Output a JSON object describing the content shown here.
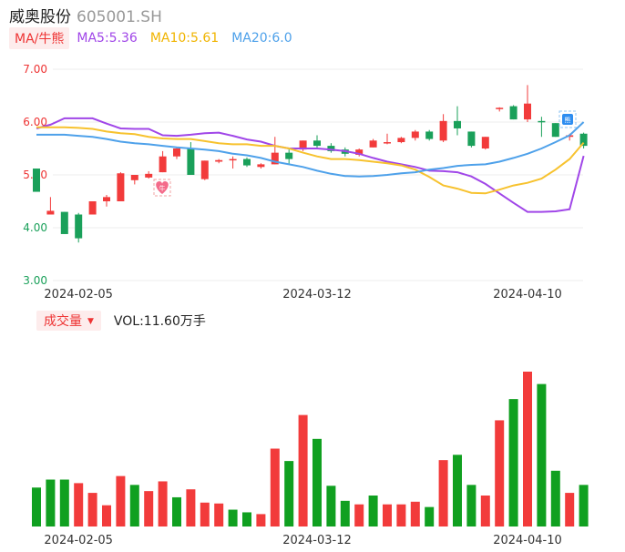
{
  "stock": {
    "name": "威奥股份",
    "code": "605001.SH"
  },
  "ma_legend": {
    "button": "MA/牛熊",
    "ma5": "MA5:5.36",
    "ma10": "MA10:5.61",
    "ma20": "MA20:6.0"
  },
  "volume_legend": {
    "button": "成交量",
    "vol": "VOL:11.60万手"
  },
  "colors": {
    "up": "#f23b3b",
    "down": "#1aa05a",
    "ma5": "#a046e8",
    "ma10": "#f7c22e",
    "ma20": "#4ea1ea"
  },
  "chart_data": [
    {
      "type": "candlestick",
      "y_ticks": [
        "7.00",
        "6.00",
        "5.00",
        "4.00",
        "3.00"
      ],
      "ylim": [
        3.0,
        7.0
      ],
      "x_ticks": [
        {
          "index": 3,
          "label": "2024-02-05"
        },
        {
          "index": 20,
          "label": "2024-03-12"
        },
        {
          "index": 35,
          "label": "2024-04-10"
        }
      ],
      "candles": [
        {
          "o": 5.12,
          "h": 5.12,
          "l": 4.68,
          "c": 4.68
        },
        {
          "o": 4.25,
          "h": 4.58,
          "l": 4.25,
          "c": 4.32
        },
        {
          "o": 4.3,
          "h": 4.3,
          "l": 3.88,
          "c": 3.88
        },
        {
          "o": 4.25,
          "h": 4.28,
          "l": 3.72,
          "c": 3.8
        },
        {
          "o": 4.25,
          "h": 4.5,
          "l": 4.25,
          "c": 4.5
        },
        {
          "o": 4.5,
          "h": 4.62,
          "l": 4.4,
          "c": 4.58
        },
        {
          "o": 4.5,
          "h": 5.05,
          "l": 4.5,
          "c": 5.03
        },
        {
          "o": 4.9,
          "h": 5.0,
          "l": 4.82,
          "c": 5.0
        },
        {
          "o": 4.95,
          "h": 5.07,
          "l": 4.93,
          "c": 5.02
        },
        {
          "o": 5.05,
          "h": 5.45,
          "l": 5.05,
          "c": 5.35
        },
        {
          "o": 5.35,
          "h": 5.52,
          "l": 5.3,
          "c": 5.5
        },
        {
          "o": 5.5,
          "h": 5.62,
          "l": 5.0,
          "c": 5.0
        },
        {
          "o": 4.92,
          "h": 5.27,
          "l": 4.9,
          "c": 5.27
        },
        {
          "o": 5.25,
          "h": 5.3,
          "l": 5.22,
          "c": 5.28
        },
        {
          "o": 5.28,
          "h": 5.35,
          "l": 5.12,
          "c": 5.3
        },
        {
          "o": 5.3,
          "h": 5.33,
          "l": 5.15,
          "c": 5.18
        },
        {
          "o": 5.15,
          "h": 5.22,
          "l": 5.12,
          "c": 5.2
        },
        {
          "o": 5.2,
          "h": 5.72,
          "l": 5.2,
          "c": 5.42
        },
        {
          "o": 5.42,
          "h": 5.48,
          "l": 5.2,
          "c": 5.3
        },
        {
          "o": 5.48,
          "h": 5.65,
          "l": 5.45,
          "c": 5.65
        },
        {
          "o": 5.65,
          "h": 5.75,
          "l": 5.5,
          "c": 5.55
        },
        {
          "o": 5.55,
          "h": 5.6,
          "l": 5.42,
          "c": 5.45
        },
        {
          "o": 5.48,
          "h": 5.52,
          "l": 5.35,
          "c": 5.4
        },
        {
          "o": 5.38,
          "h": 5.5,
          "l": 5.35,
          "c": 5.48
        },
        {
          "o": 5.52,
          "h": 5.68,
          "l": 5.52,
          "c": 5.65
        },
        {
          "o": 5.6,
          "h": 5.78,
          "l": 5.58,
          "c": 5.62
        },
        {
          "o": 5.62,
          "h": 5.72,
          "l": 5.6,
          "c": 5.7
        },
        {
          "o": 5.7,
          "h": 5.85,
          "l": 5.65,
          "c": 5.82
        },
        {
          "o": 5.82,
          "h": 5.85,
          "l": 5.65,
          "c": 5.68
        },
        {
          "o": 5.65,
          "h": 6.15,
          "l": 5.62,
          "c": 6.02
        },
        {
          "o": 6.02,
          "h": 6.3,
          "l": 5.75,
          "c": 5.88
        },
        {
          "o": 5.82,
          "h": 5.82,
          "l": 5.52,
          "c": 5.55
        },
        {
          "o": 5.5,
          "h": 5.72,
          "l": 5.48,
          "c": 5.72
        },
        {
          "o": 6.25,
          "h": 6.28,
          "l": 6.2,
          "c": 6.27
        },
        {
          "o": 6.3,
          "h": 6.32,
          "l": 6.05,
          "c": 6.05
        },
        {
          "o": 6.05,
          "h": 6.7,
          "l": 6.0,
          "c": 6.35
        },
        {
          "o": 6.02,
          "h": 6.1,
          "l": 5.72,
          "c": 6.0
        },
        {
          "o": 5.98,
          "h": 5.98,
          "l": 5.72,
          "c": 5.72
        },
        {
          "o": 5.72,
          "h": 5.78,
          "l": 5.65,
          "c": 5.75
        },
        {
          "o": 5.78,
          "h": 5.8,
          "l": 5.5,
          "c": 5.55
        }
      ],
      "series": [
        {
          "name": "MA5",
          "values": [
            5.88,
            5.95,
            6.07,
            6.07,
            6.07,
            5.97,
            5.88,
            5.87,
            5.87,
            5.75,
            5.74,
            5.76,
            5.79,
            5.8,
            5.74,
            5.67,
            5.63,
            5.55,
            5.5,
            5.5,
            5.5,
            5.48,
            5.45,
            5.4,
            5.32,
            5.25,
            5.2,
            5.15,
            5.08,
            5.07,
            5.05,
            4.97,
            4.83,
            4.65,
            4.47,
            4.3,
            4.3,
            4.31,
            4.35,
            5.36
          ]
        },
        {
          "name": "MA10",
          "values": [
            5.9,
            5.9,
            5.9,
            5.89,
            5.87,
            5.82,
            5.79,
            5.77,
            5.72,
            5.69,
            5.68,
            5.68,
            5.64,
            5.6,
            5.58,
            5.58,
            5.55,
            5.55,
            5.5,
            5.42,
            5.35,
            5.3,
            5.3,
            5.28,
            5.25,
            5.22,
            5.18,
            5.1,
            4.96,
            4.8,
            4.74,
            4.66,
            4.65,
            4.72,
            4.8,
            4.85,
            4.93,
            5.1,
            5.3,
            5.61
          ]
        },
        {
          "name": "MA20",
          "values": [
            5.76,
            5.76,
            5.76,
            5.74,
            5.72,
            5.68,
            5.63,
            5.6,
            5.58,
            5.55,
            5.52,
            5.5,
            5.48,
            5.45,
            5.4,
            5.37,
            5.32,
            5.25,
            5.2,
            5.15,
            5.08,
            5.02,
            4.98,
            4.97,
            4.98,
            5.0,
            5.03,
            5.05,
            5.1,
            5.13,
            5.17,
            5.19,
            5.2,
            5.25,
            5.32,
            5.4,
            5.5,
            5.62,
            5.75,
            6.0
          ]
        }
      ]
    },
    {
      "type": "bar",
      "title": "成交量",
      "x_ticks": [
        "2024-02-05",
        "2024-03-12",
        "2024-04-10"
      ],
      "values": [
        4.4,
        5.3,
        5.3,
        4.9,
        3.8,
        2.4,
        5.7,
        4.7,
        4.0,
        5.1,
        3.3,
        4.2,
        2.7,
        2.6,
        1.9,
        1.6,
        1.4,
        8.8,
        7.4,
        12.6,
        9.9,
        4.6,
        2.9,
        2.5,
        3.5,
        2.5,
        2.5,
        2.8,
        2.2,
        7.5,
        8.1,
        4.7,
        3.5,
        12.0,
        14.4,
        17.5,
        16.1,
        6.3,
        3.8,
        4.7
      ],
      "up": [
        false,
        false,
        false,
        true,
        true,
        true,
        true,
        false,
        true,
        true,
        false,
        true,
        true,
        true,
        false,
        false,
        true,
        true,
        false,
        true,
        false,
        false,
        false,
        true,
        false,
        true,
        true,
        true,
        false,
        true,
        false,
        false,
        true,
        true,
        false,
        true,
        false,
        false,
        true,
        false
      ]
    }
  ]
}
